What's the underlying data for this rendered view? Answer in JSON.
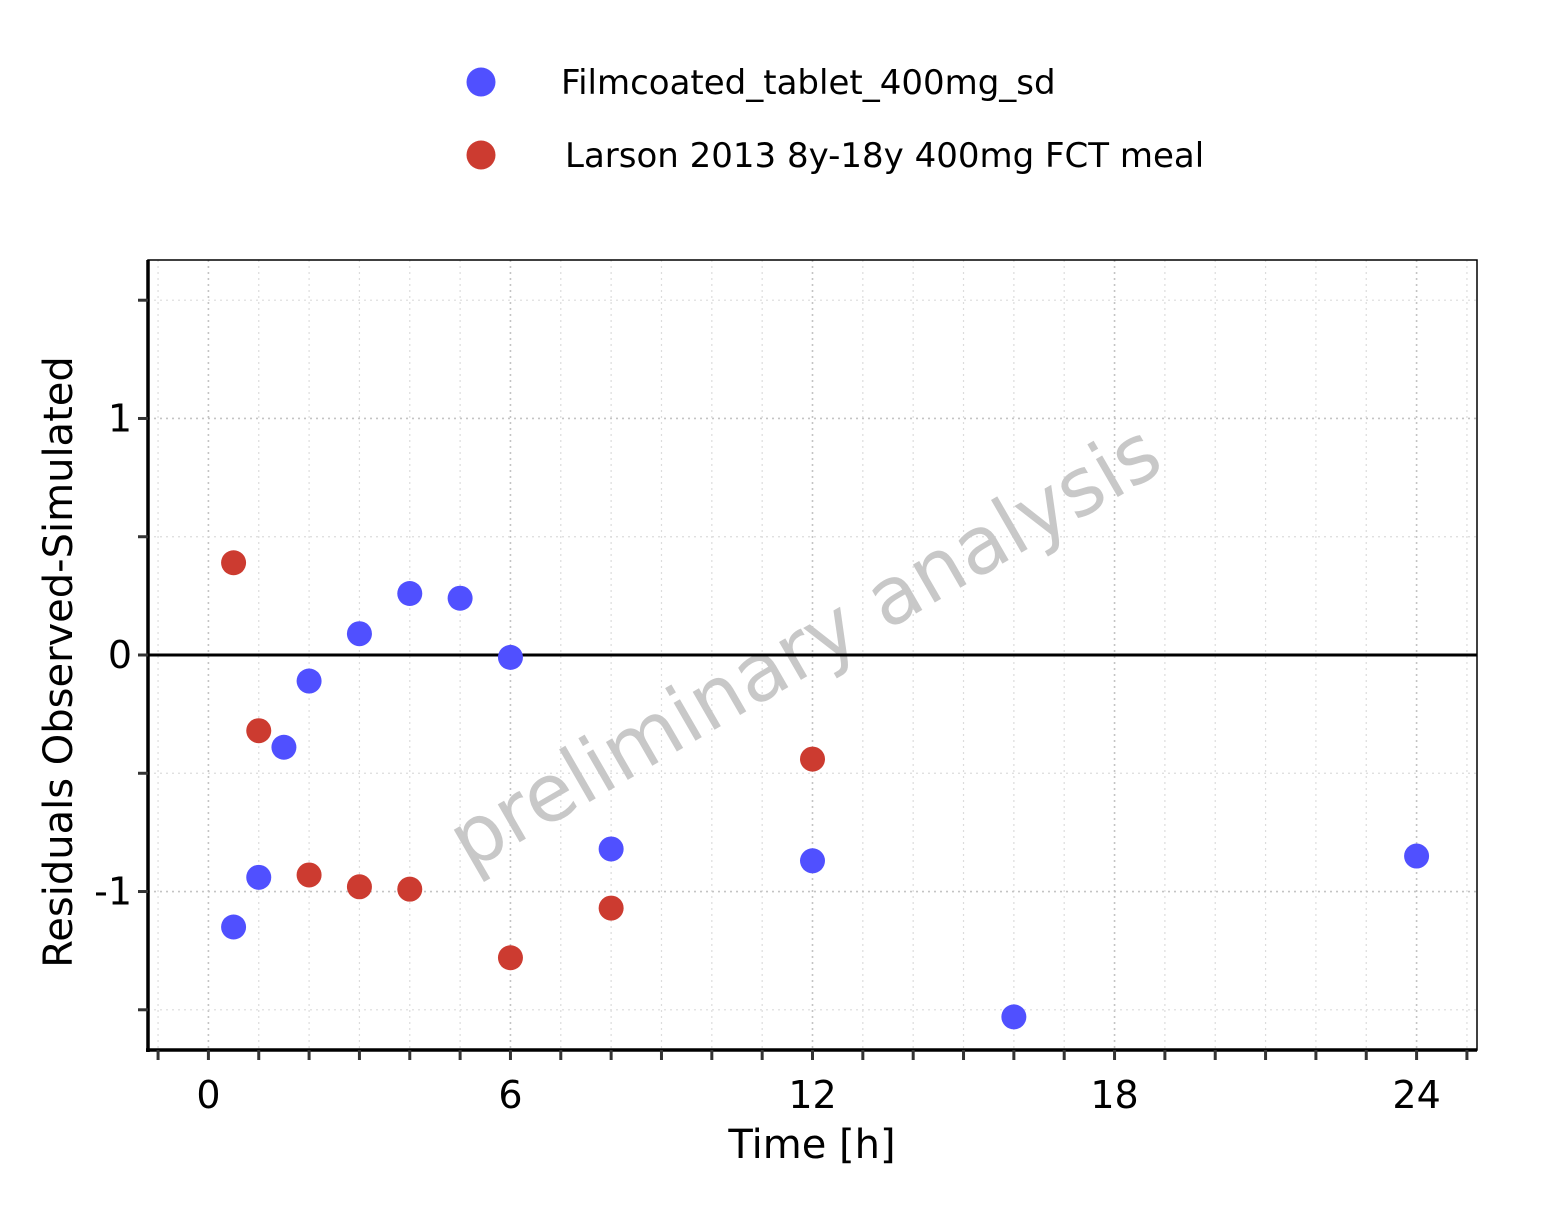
{
  "chart_data": {
    "type": "scatter",
    "xlabel": "Time [h]",
    "ylabel": "Residuals Observed-Simulated",
    "xlim": [
      -1.2,
      25.2
    ],
    "ylim": [
      -1.67,
      1.67
    ],
    "x_ticks": [
      0,
      6,
      12,
      18,
      24
    ],
    "y_ticks": [
      -1,
      0,
      1
    ],
    "x_minor_step": 1,
    "y_minor_step": 0.5,
    "grid": true,
    "reference_line_y": 0,
    "legend_position": "top",
    "watermark": "preliminary analysis",
    "series": [
      {
        "name": "Filmcoated_tablet_400mg_sd",
        "color": "#5050ff",
        "points": [
          {
            "x": 0.5,
            "y": -1.15
          },
          {
            "x": 1.0,
            "y": -0.94
          },
          {
            "x": 1.5,
            "y": -0.39
          },
          {
            "x": 2.0,
            "y": -0.11
          },
          {
            "x": 3.0,
            "y": 0.09
          },
          {
            "x": 4.0,
            "y": 0.26
          },
          {
            "x": 5.0,
            "y": 0.24
          },
          {
            "x": 6.0,
            "y": -0.01
          },
          {
            "x": 8.0,
            "y": -0.82
          },
          {
            "x": 12.0,
            "y": -0.87
          },
          {
            "x": 16.0,
            "y": -1.53
          },
          {
            "x": 24.0,
            "y": -0.85
          }
        ]
      },
      {
        "name": "Larson 2013 8y-18y 400mg FCT meal",
        "color": "#cc3b30",
        "points": [
          {
            "x": 0.5,
            "y": 0.39
          },
          {
            "x": 1.0,
            "y": -0.32
          },
          {
            "x": 2.0,
            "y": -0.93
          },
          {
            "x": 3.0,
            "y": -0.98
          },
          {
            "x": 4.0,
            "y": -0.99
          },
          {
            "x": 6.0,
            "y": -1.28
          },
          {
            "x": 8.0,
            "y": -1.07
          },
          {
            "x": 12.0,
            "y": -0.44
          }
        ]
      }
    ]
  }
}
